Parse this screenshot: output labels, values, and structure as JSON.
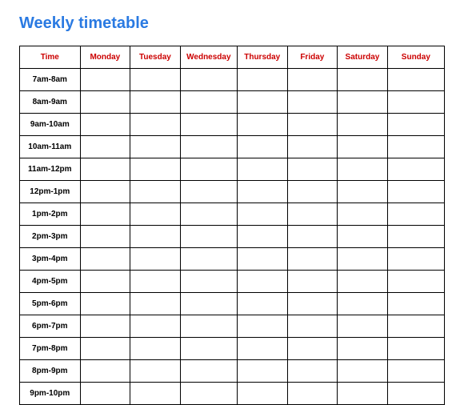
{
  "title": "Weekly timetable",
  "title_color": "#2a7ae2",
  "header_color": "#cc0000",
  "time_cell_color": "#000000",
  "border_color": "#000000",
  "background_color": "#ffffff",
  "columns": [
    "Time",
    "Monday",
    "Tuesday",
    "Wednesday",
    "Thursday",
    "Friday",
    "Saturday",
    "Sunday"
  ],
  "timeslots": [
    "7am-8am",
    "8am-9am",
    "9am-10am",
    "10am-11am",
    "11am-12pm",
    "12pm-1pm",
    "1pm-2pm",
    "2pm-3pm",
    "3pm-4pm",
    "4pm-5pm",
    "5pm-6pm",
    "6pm-7pm",
    "7pm-8pm",
    "8pm-9pm",
    "9pm-10pm"
  ],
  "rows": [
    [
      "",
      "",
      "",
      "",
      "",
      "",
      ""
    ],
    [
      "",
      "",
      "",
      "",
      "",
      "",
      ""
    ],
    [
      "",
      "",
      "",
      "",
      "",
      "",
      ""
    ],
    [
      "",
      "",
      "",
      "",
      "",
      "",
      ""
    ],
    [
      "",
      "",
      "",
      "",
      "",
      "",
      ""
    ],
    [
      "",
      "",
      "",
      "",
      "",
      "",
      ""
    ],
    [
      "",
      "",
      "",
      "",
      "",
      "",
      ""
    ],
    [
      "",
      "",
      "",
      "",
      "",
      "",
      ""
    ],
    [
      "",
      "",
      "",
      "",
      "",
      "",
      ""
    ],
    [
      "",
      "",
      "",
      "",
      "",
      "",
      ""
    ],
    [
      "",
      "",
      "",
      "",
      "",
      "",
      ""
    ],
    [
      "",
      "",
      "",
      "",
      "",
      "",
      ""
    ],
    [
      "",
      "",
      "",
      "",
      "",
      "",
      ""
    ],
    [
      "",
      "",
      "",
      "",
      "",
      "",
      ""
    ],
    [
      "",
      "",
      "",
      "",
      "",
      "",
      ""
    ]
  ]
}
